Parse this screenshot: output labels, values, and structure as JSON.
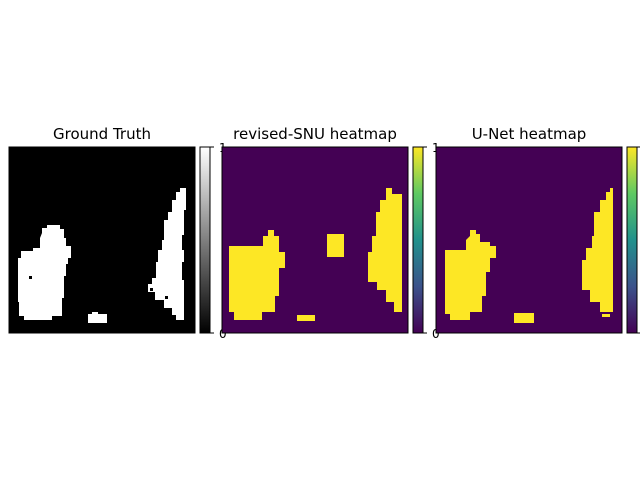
{
  "chart_data": [
    {
      "type": "heatmap",
      "title": "Ground Truth",
      "colormap": "gray",
      "value_range": [
        0,
        1
      ],
      "colorbar_ticks": [
        "0",
        "1"
      ],
      "axes_visible": false
    },
    {
      "type": "heatmap",
      "title": "revised-SNU heatmap",
      "colormap": "viridis",
      "value_range": [
        0,
        1
      ],
      "colorbar_ticks": [
        "0",
        "1"
      ],
      "axes_visible": false
    },
    {
      "type": "heatmap",
      "title": "U-Net heatmap",
      "colormap": "viridis",
      "value_range": [
        0,
        1
      ],
      "colorbar_ticks": [
        "0",
        "1"
      ],
      "axes_visible": false
    }
  ],
  "colors": {
    "gray_low": "#000000",
    "gray_high": "#ffffff",
    "viridis_low": "#440154",
    "viridis_high": "#fde725"
  }
}
